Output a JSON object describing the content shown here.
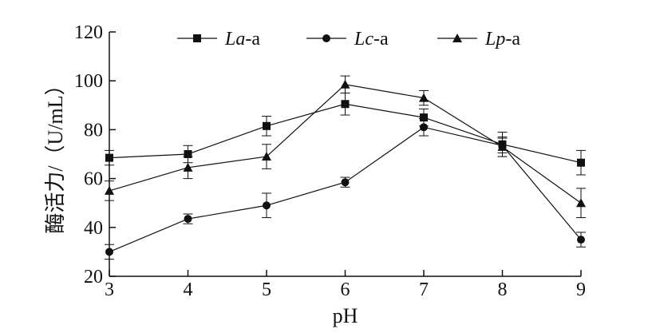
{
  "chart_data": {
    "type": "line",
    "title": "",
    "xlabel": "pH",
    "ylabel": "酶活力/（U/mL）",
    "x": [
      3,
      4,
      5,
      6,
      7,
      8,
      9
    ],
    "xlim": [
      3,
      9
    ],
    "ylim": [
      20,
      120
    ],
    "xticks": [
      "3",
      "4",
      "5",
      "6",
      "7",
      "8",
      "9"
    ],
    "yticks": [
      "20",
      "40",
      "60",
      "80",
      "100",
      "120"
    ],
    "grid": false,
    "legend_position": "top",
    "series": [
      {
        "name": "La-a",
        "name_italic": "La",
        "name_suffix": "-a",
        "marker": "square",
        "color": "#111111",
        "values": [
          68.5,
          70,
          81.5,
          90.5,
          85,
          74,
          66.5
        ],
        "errors": [
          3,
          3.5,
          4,
          4.5,
          3.5,
          5,
          5
        ]
      },
      {
        "name": "Lc-a",
        "name_italic": "Lc",
        "name_suffix": "-a",
        "marker": "circle",
        "color": "#111111",
        "values": [
          30,
          43.5,
          49,
          58.5,
          81,
          73.5,
          35
        ],
        "errors": [
          3,
          2,
          5,
          2,
          3.5,
          3,
          3
        ]
      },
      {
        "name": "Lp-a",
        "name_italic": "Lp",
        "name_suffix": "-a",
        "marker": "triangle",
        "color": "#111111",
        "values": [
          55,
          64.5,
          69,
          98.5,
          93,
          73,
          50
        ],
        "errors": [
          4,
          4.5,
          5,
          3.5,
          3,
          4,
          6
        ]
      }
    ]
  }
}
